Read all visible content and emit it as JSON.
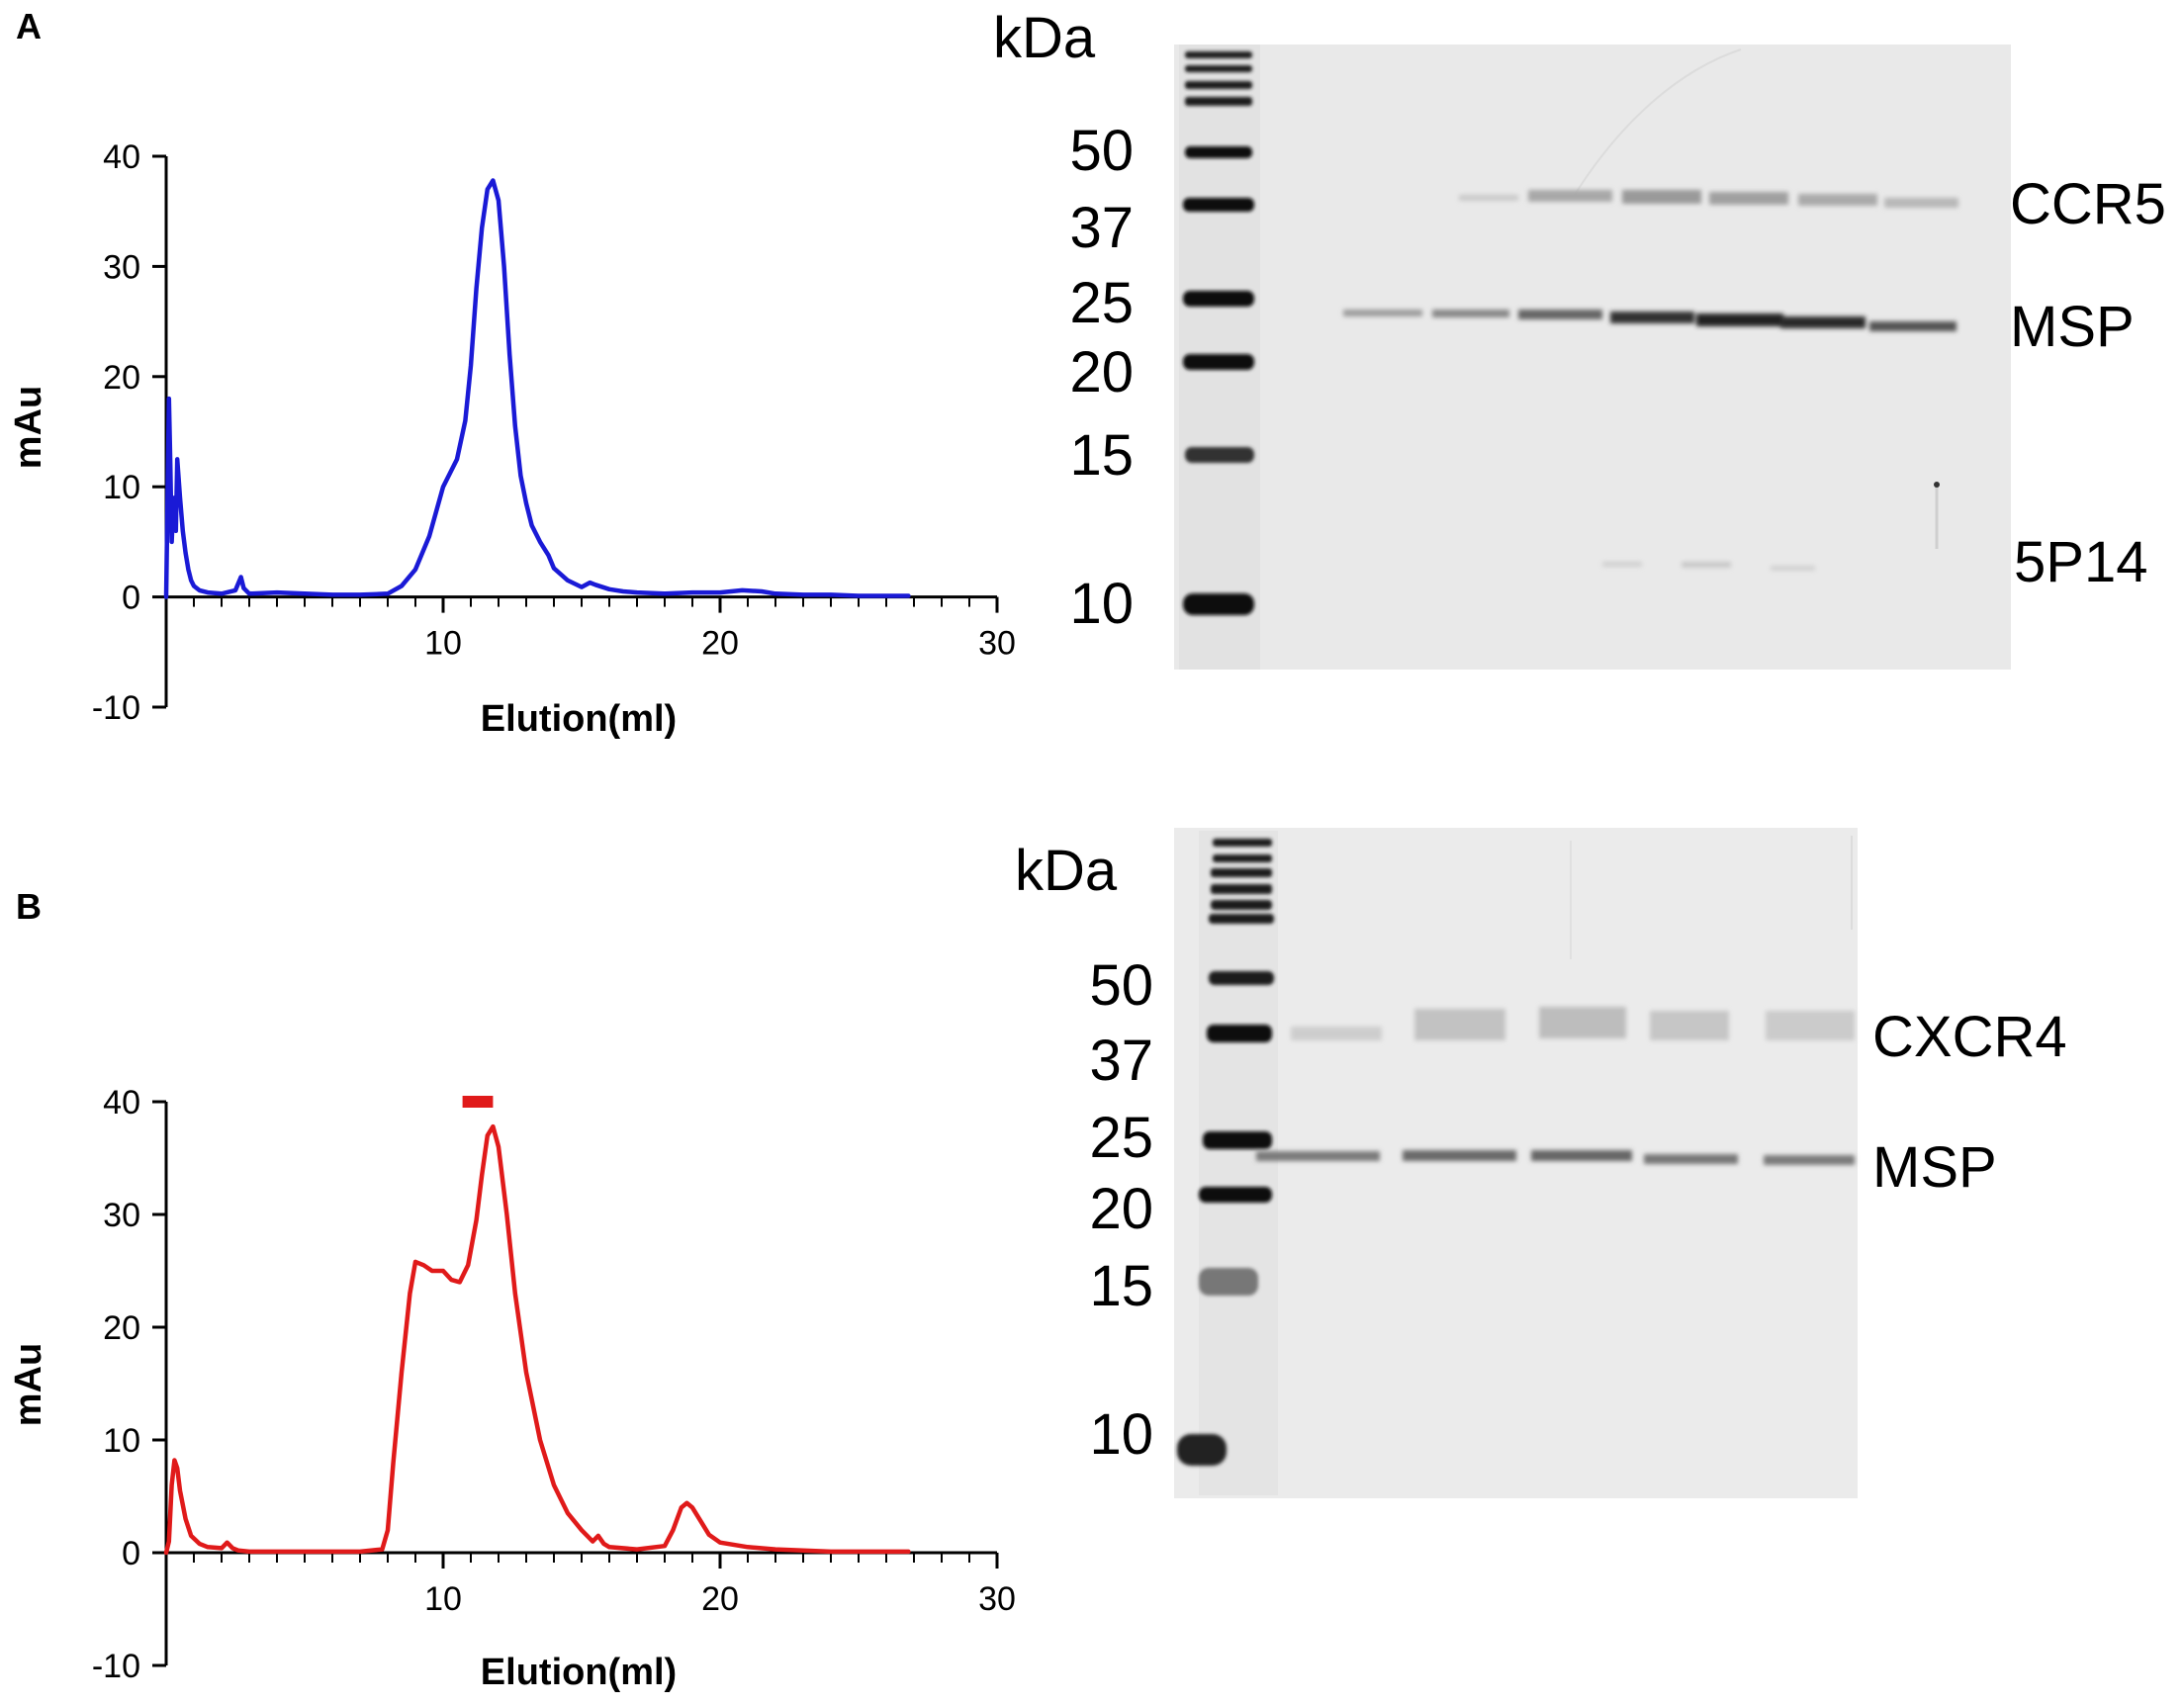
{
  "panels": [
    {
      "label": "A"
    },
    {
      "label": "B"
    }
  ],
  "chart_data": [
    {
      "type": "line",
      "panel": "A",
      "xlabel": "Elution(ml)",
      "ylabel": "mAu",
      "xlim": [
        0,
        30
      ],
      "ylim": [
        -10,
        40
      ],
      "xticks": [
        10,
        20,
        30
      ],
      "yticks": [
        -10,
        0,
        10,
        20,
        30,
        40
      ],
      "grid": false,
      "color": "#1a1ad6",
      "series": [
        {
          "x": [
            0.0,
            0.1,
            0.15,
            0.2,
            0.25,
            0.3,
            0.35,
            0.4,
            0.5,
            0.6,
            0.7,
            0.8,
            0.9,
            1.0,
            1.2,
            1.5,
            2.0,
            2.5,
            2.7,
            2.8,
            3.0,
            4.0,
            5.0,
            6.0,
            7.0,
            8.0,
            8.5,
            9.0,
            9.5,
            10.0,
            10.5,
            10.8,
            11.0,
            11.2,
            11.4,
            11.6,
            11.8,
            12.0,
            12.2,
            12.4,
            12.6,
            12.8,
            13.0,
            13.2,
            13.5,
            13.8,
            14.0,
            14.5,
            15.0,
            15.3,
            15.5,
            16.0,
            16.5,
            17.0,
            18.0,
            19.0,
            20.0,
            20.8,
            21.5,
            22.0,
            23.0,
            24.0,
            25.0,
            26.0,
            26.8
          ],
          "y": [
            0.0,
            18.0,
            12.0,
            5.0,
            8.0,
            9.0,
            6.0,
            12.5,
            9.0,
            6.0,
            4.0,
            2.5,
            1.5,
            1.0,
            0.6,
            0.4,
            0.3,
            0.6,
            1.8,
            0.8,
            0.3,
            0.4,
            0.3,
            0.2,
            0.2,
            0.3,
            1.0,
            2.5,
            5.5,
            10.0,
            12.5,
            16.0,
            21.0,
            28.0,
            33.5,
            37.0,
            37.8,
            36.0,
            30.0,
            22.0,
            15.5,
            11.0,
            8.5,
            6.5,
            5.0,
            3.8,
            2.6,
            1.5,
            0.9,
            1.3,
            1.1,
            0.7,
            0.5,
            0.4,
            0.3,
            0.4,
            0.4,
            0.6,
            0.5,
            0.3,
            0.2,
            0.2,
            0.1,
            0.1,
            0.1
          ]
        }
      ]
    },
    {
      "type": "line",
      "panel": "B",
      "xlabel": "Elution(ml)",
      "ylabel": "mAu",
      "xlim": [
        0,
        30
      ],
      "ylim": [
        -10,
        40
      ],
      "xticks": [
        10,
        20,
        30
      ],
      "yticks": [
        -10,
        0,
        10,
        20,
        30,
        40
      ],
      "grid": false,
      "color": "#e01a1a",
      "series": [
        {
          "x": [
            0.0,
            0.1,
            0.2,
            0.3,
            0.4,
            0.5,
            0.7,
            0.9,
            1.2,
            1.5,
            2.0,
            2.2,
            2.4,
            2.6,
            3.0,
            5.0,
            7.0,
            7.8,
            8.0,
            8.2,
            8.5,
            8.8,
            9.0,
            9.3,
            9.6,
            10.0,
            10.3,
            10.6,
            10.9,
            11.2,
            11.4,
            11.6,
            11.8,
            12.0,
            12.3,
            12.6,
            13.0,
            13.5,
            14.0,
            14.5,
            15.0,
            15.4,
            15.6,
            15.8,
            16.0,
            17.0,
            18.0,
            18.3,
            18.6,
            18.8,
            19.0,
            19.3,
            19.6,
            20.0,
            21.0,
            22.0,
            23.0,
            24.0,
            25.0,
            26.8
          ],
          "y": [
            0.0,
            1.0,
            6.0,
            8.2,
            7.5,
            5.5,
            3.0,
            1.5,
            0.8,
            0.5,
            0.4,
            0.9,
            0.4,
            0.2,
            0.1,
            0.1,
            0.1,
            0.3,
            2.0,
            8.0,
            16.0,
            23.0,
            25.8,
            25.5,
            25.0,
            25.0,
            24.2,
            24.0,
            25.5,
            29.5,
            33.5,
            37.0,
            37.8,
            36.0,
            30.0,
            23.0,
            16.0,
            10.0,
            6.0,
            3.5,
            2.0,
            1.0,
            1.5,
            0.8,
            0.5,
            0.3,
            0.6,
            2.0,
            4.0,
            4.4,
            4.0,
            2.8,
            1.6,
            0.9,
            0.5,
            0.3,
            0.2,
            0.1,
            0.1,
            0.1
          ]
        }
      ],
      "annotations": [
        {
          "type": "bar",
          "x_start": 10.7,
          "x_end": 11.8,
          "y": 40.0,
          "color": "#e01a1a"
        }
      ]
    }
  ],
  "gels": [
    {
      "panel": "A",
      "unit": "kDa",
      "ladder_markers": [
        "50",
        "37",
        "25",
        "20",
        "15",
        "10"
      ],
      "band_labels": [
        "CCR5",
        "MSP",
        "5P14"
      ]
    },
    {
      "panel": "B",
      "unit": "kDa",
      "ladder_markers": [
        "50",
        "37",
        "25",
        "20",
        "15",
        "10"
      ],
      "band_labels": [
        "CXCR4",
        "MSP"
      ]
    }
  ]
}
